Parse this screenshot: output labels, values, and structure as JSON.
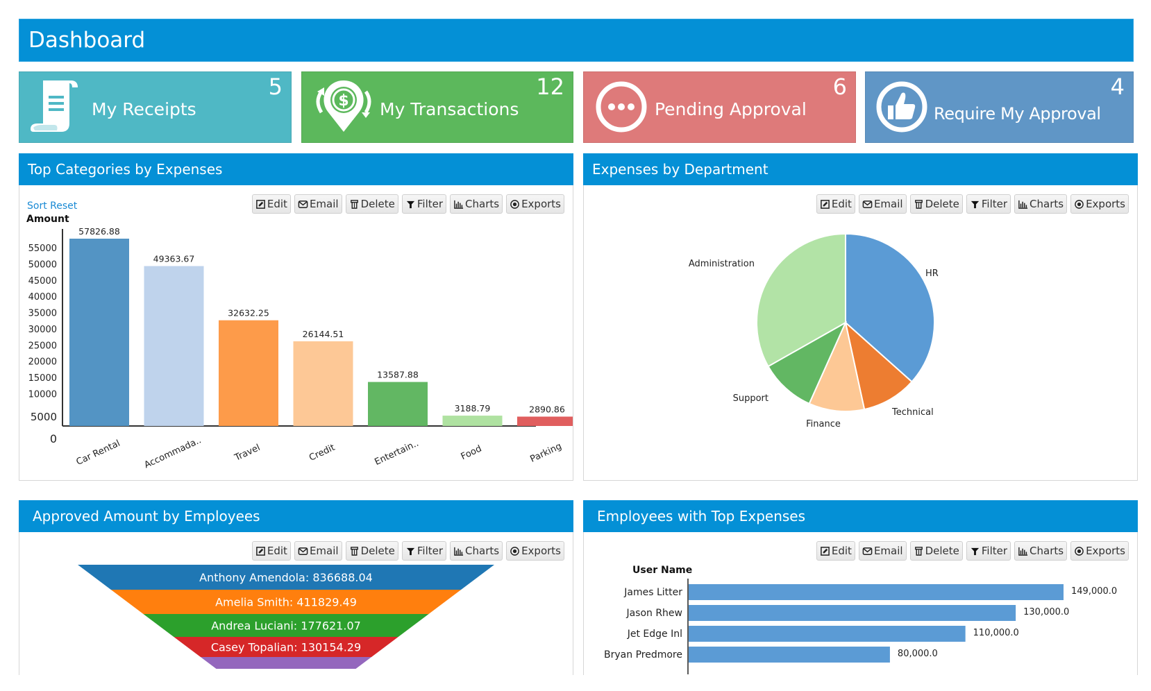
{
  "header": {
    "title": "Dashboard",
    "color": "#0490d6"
  },
  "tiles": [
    {
      "label": "My Receipts",
      "count": "5",
      "icon": "receipt-icon",
      "color": "#4fb8c5"
    },
    {
      "label": "My Transactions",
      "count": "12",
      "icon": "dollar-transfer-icon",
      "color": "#5cb85c"
    },
    {
      "label": "Pending Approval",
      "count": "6",
      "icon": "ellipsis-circle-icon",
      "color": "#de7a7a"
    },
    {
      "label": "Require  My Approval",
      "count": "4",
      "icon": "thumbs-up-icon",
      "color": "#6096c6"
    }
  ],
  "toolbar": {
    "edit": "Edit",
    "email": "Email",
    "delete": "Delete",
    "filter": "Filter",
    "charts": "Charts",
    "exports": "Exports"
  },
  "panels": {
    "categories": {
      "title": "Top Categories by Expenses",
      "sort_reset": "Sort Reset"
    },
    "department": {
      "title": "Expenses by Department"
    },
    "approved": {
      "title": "Approved Amount by Employees"
    },
    "employees": {
      "title": "Employees with Top Expenses"
    }
  },
  "chart_data": [
    {
      "type": "bar",
      "title": "Top Categories by Expenses",
      "ylabel": "Amount",
      "xlabel": "",
      "categories": [
        "Car Rental",
        "Accommada..",
        "Travel",
        "Credit",
        "Entertain..",
        "Food",
        "Parking"
      ],
      "values": [
        57826.88,
        49363.67,
        32632.25,
        26144.51,
        13587.88,
        3188.79,
        2890.86
      ],
      "value_labels": [
        "57826.88",
        "49363.67",
        "32632.25",
        "26144.51",
        "13587.88",
        "3188.79",
        "2890.86"
      ],
      "colors": [
        "#5394c4",
        "#bfd3ec",
        "#fd9b4a",
        "#fdc896",
        "#62b763",
        "#afe2a1",
        "#e05e5e"
      ],
      "yticks": [
        "55000",
        "50000",
        "45000",
        "40000",
        "35000",
        "30000",
        "25000",
        "20000",
        "15000",
        "10000",
        "5000",
        "0"
      ],
      "ylim": [
        0,
        60000
      ],
      "grid": false
    },
    {
      "type": "pie",
      "title": "Expenses by Department",
      "categories": [
        "HR",
        "Technical",
        "Finance",
        "Support",
        "Administration"
      ],
      "values": [
        36.6,
        10.0,
        10.1,
        10.1,
        33.2
      ],
      "colors": [
        "#5b9bd5",
        "#ed7d31",
        "#fdc895",
        "#62b763",
        "#b2e3a6"
      ]
    },
    {
      "type": "funnel",
      "title": "Approved Amount by Employees",
      "categories": [
        "Anthony Amendola",
        "Amelia Smith",
        "Andrea Luciani",
        "Casey Topalian",
        ""
      ],
      "values": [
        836688.04,
        411829.49,
        177621.07,
        130154.29,
        null
      ],
      "labels": [
        "Anthony Amendola: 836688.04",
        "Amelia Smith: 411829.49",
        "Andrea Luciani: 177621.07",
        "Casey Topalian: 130154.29",
        ""
      ],
      "colors": [
        "#1f77b4",
        "#ff7f0e",
        "#2ca02c",
        "#d62728",
        "#9467bd"
      ]
    },
    {
      "type": "bar",
      "orientation": "horizontal",
      "title": "Employees with Top Expenses",
      "ylabel": "User Name",
      "categories": [
        "James Litter",
        "Jason Rhew",
        "Jet Edge Inl",
        "Bryan Predmore"
      ],
      "values": [
        149000.0,
        130000.0,
        110000.0,
        80000.0
      ],
      "value_labels": [
        "149,000.0",
        "130,000.0",
        "110,000.0",
        "80,000.0"
      ],
      "color": "#5b9bd5",
      "xlim": [
        0,
        149000
      ]
    }
  ]
}
